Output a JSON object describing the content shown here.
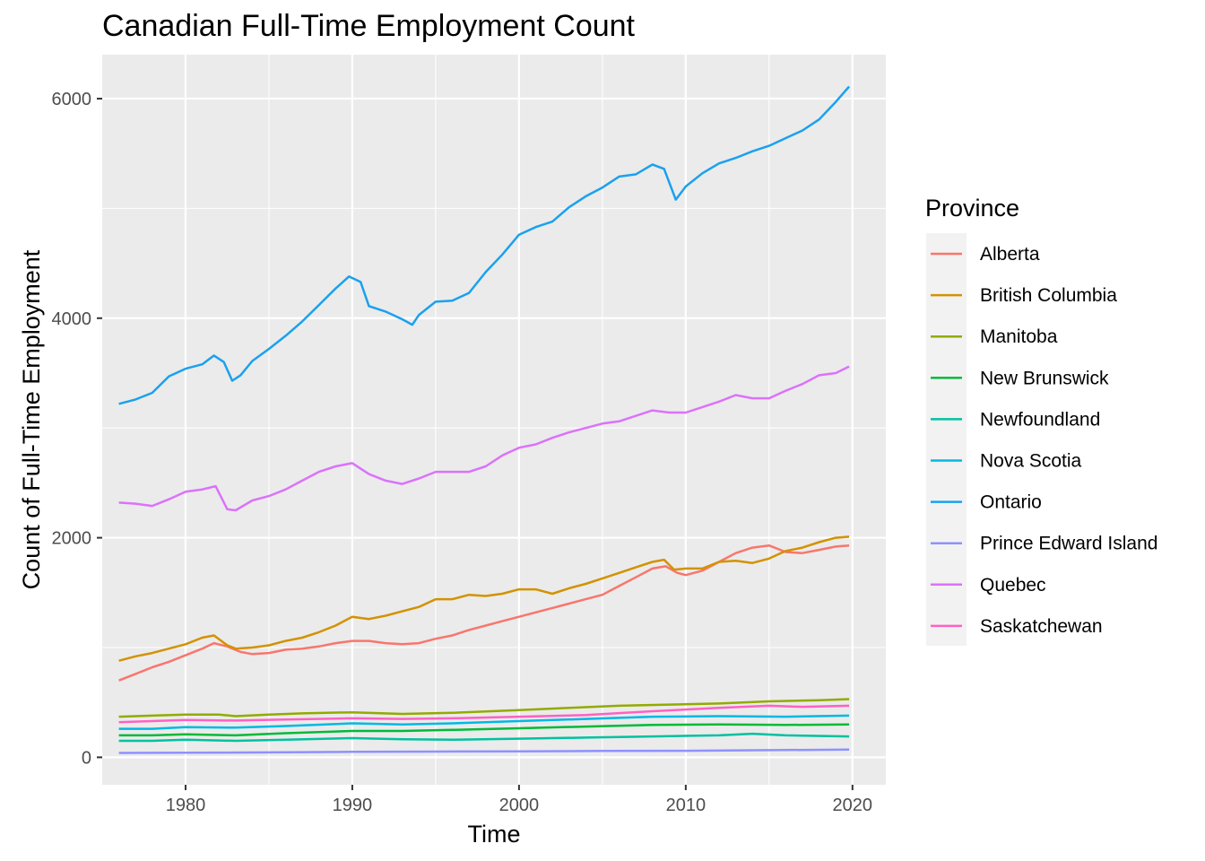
{
  "chart_data": {
    "type": "line",
    "title": "Canadian Full-Time Employment Count",
    "xlabel": "Time",
    "ylabel": "Count of Full-Time Employment",
    "xlim": [
      1975,
      2022
    ],
    "ylim": [
      -250,
      6400
    ],
    "x_ticks": [
      1980,
      1990,
      2000,
      2010,
      2020
    ],
    "y_ticks": [
      0,
      2000,
      4000,
      6000
    ],
    "grid": true,
    "legend_title": "Province",
    "legend_position": "right",
    "series": [
      {
        "name": "Alberta",
        "color": "#F8766D",
        "points": [
          [
            1976,
            700
          ],
          [
            1977,
            760
          ],
          [
            1978,
            820
          ],
          [
            1979,
            870
          ],
          [
            1980,
            930
          ],
          [
            1981,
            990
          ],
          [
            1981.7,
            1040
          ],
          [
            1982.5,
            1010
          ],
          [
            1983.3,
            960
          ],
          [
            1984,
            940
          ],
          [
            1985,
            950
          ],
          [
            1986,
            980
          ],
          [
            1987,
            990
          ],
          [
            1988,
            1010
          ],
          [
            1989,
            1040
          ],
          [
            1990,
            1060
          ],
          [
            1991,
            1060
          ],
          [
            1992,
            1040
          ],
          [
            1993,
            1030
          ],
          [
            1994,
            1040
          ],
          [
            1995,
            1080
          ],
          [
            1996,
            1110
          ],
          [
            1997,
            1160
          ],
          [
            1998,
            1200
          ],
          [
            1999,
            1240
          ],
          [
            2000,
            1280
          ],
          [
            2001,
            1320
          ],
          [
            2002,
            1360
          ],
          [
            2003,
            1400
          ],
          [
            2004,
            1440
          ],
          [
            2005,
            1480
          ],
          [
            2006,
            1560
          ],
          [
            2007,
            1640
          ],
          [
            2008,
            1720
          ],
          [
            2008.8,
            1740
          ],
          [
            2009.5,
            1680
          ],
          [
            2010,
            1660
          ],
          [
            2011,
            1700
          ],
          [
            2012,
            1780
          ],
          [
            2013,
            1860
          ],
          [
            2014,
            1910
          ],
          [
            2015,
            1930
          ],
          [
            2016,
            1870
          ],
          [
            2017,
            1860
          ],
          [
            2018,
            1890
          ],
          [
            2019,
            1920
          ],
          [
            2019.8,
            1930
          ]
        ]
      },
      {
        "name": "British Columbia",
        "color": "#D39200",
        "points": [
          [
            1976,
            880
          ],
          [
            1977,
            920
          ],
          [
            1978,
            950
          ],
          [
            1979,
            990
          ],
          [
            1980,
            1030
          ],
          [
            1981,
            1090
          ],
          [
            1981.7,
            1110
          ],
          [
            1982.5,
            1020
          ],
          [
            1983,
            990
          ],
          [
            1984,
            1000
          ],
          [
            1985,
            1020
          ],
          [
            1986,
            1060
          ],
          [
            1987,
            1090
          ],
          [
            1988,
            1140
          ],
          [
            1989,
            1200
          ],
          [
            1990,
            1280
          ],
          [
            1991,
            1260
          ],
          [
            1992,
            1290
          ],
          [
            1993,
            1330
          ],
          [
            1994,
            1370
          ],
          [
            1995,
            1440
          ],
          [
            1996,
            1440
          ],
          [
            1997,
            1480
          ],
          [
            1998,
            1470
          ],
          [
            1999,
            1490
          ],
          [
            2000,
            1530
          ],
          [
            2001,
            1530
          ],
          [
            2002,
            1490
          ],
          [
            2003,
            1540
          ],
          [
            2004,
            1580
          ],
          [
            2005,
            1630
          ],
          [
            2006,
            1680
          ],
          [
            2007,
            1730
          ],
          [
            2008,
            1780
          ],
          [
            2008.7,
            1800
          ],
          [
            2009.3,
            1710
          ],
          [
            2010,
            1720
          ],
          [
            2011,
            1720
          ],
          [
            2012,
            1780
          ],
          [
            2013,
            1790
          ],
          [
            2014,
            1770
          ],
          [
            2015,
            1810
          ],
          [
            2016,
            1880
          ],
          [
            2017,
            1910
          ],
          [
            2018,
            1960
          ],
          [
            2019,
            2000
          ],
          [
            2019.8,
            2010
          ]
        ]
      },
      {
        "name": "Manitoba",
        "color": "#93AA00",
        "points": [
          [
            1976,
            370
          ],
          [
            1978,
            380
          ],
          [
            1980,
            390
          ],
          [
            1982,
            390
          ],
          [
            1983,
            375
          ],
          [
            1985,
            390
          ],
          [
            1987,
            400
          ],
          [
            1990,
            410
          ],
          [
            1993,
            395
          ],
          [
            1996,
            405
          ],
          [
            2000,
            430
          ],
          [
            2003,
            450
          ],
          [
            2006,
            470
          ],
          [
            2009,
            480
          ],
          [
            2012,
            490
          ],
          [
            2015,
            510
          ],
          [
            2018,
            520
          ],
          [
            2019.8,
            530
          ]
        ]
      },
      {
        "name": "New Brunswick",
        "color": "#00BA38",
        "points": [
          [
            1976,
            200
          ],
          [
            1978,
            200
          ],
          [
            1980,
            210
          ],
          [
            1983,
            200
          ],
          [
            1986,
            220
          ],
          [
            1990,
            240
          ],
          [
            1993,
            240
          ],
          [
            1996,
            250
          ],
          [
            2000,
            265
          ],
          [
            2004,
            280
          ],
          [
            2008,
            295
          ],
          [
            2012,
            300
          ],
          [
            2016,
            295
          ],
          [
            2019.8,
            300
          ]
        ]
      },
      {
        "name": "Newfoundland",
        "color": "#00C19F",
        "points": [
          [
            1976,
            150
          ],
          [
            1978,
            150
          ],
          [
            1980,
            160
          ],
          [
            1983,
            150
          ],
          [
            1986,
            160
          ],
          [
            1990,
            175
          ],
          [
            1993,
            165
          ],
          [
            1996,
            160
          ],
          [
            2000,
            170
          ],
          [
            2004,
            180
          ],
          [
            2008,
            190
          ],
          [
            2012,
            200
          ],
          [
            2014,
            215
          ],
          [
            2016,
            200
          ],
          [
            2019.8,
            190
          ]
        ]
      },
      {
        "name": "Nova Scotia",
        "color": "#00B9E3",
        "points": [
          [
            1976,
            260
          ],
          [
            1978,
            260
          ],
          [
            1980,
            275
          ],
          [
            1983,
            270
          ],
          [
            1986,
            285
          ],
          [
            1990,
            310
          ],
          [
            1993,
            300
          ],
          [
            1996,
            310
          ],
          [
            2000,
            330
          ],
          [
            2004,
            350
          ],
          [
            2008,
            370
          ],
          [
            2012,
            375
          ],
          [
            2016,
            370
          ],
          [
            2019.8,
            380
          ]
        ]
      },
      {
        "name": "Ontario",
        "color": "#1AA1EE",
        "points": [
          [
            1976,
            3220
          ],
          [
            1977,
            3260
          ],
          [
            1978,
            3320
          ],
          [
            1979,
            3470
          ],
          [
            1980,
            3540
          ],
          [
            1981,
            3580
          ],
          [
            1981.7,
            3660
          ],
          [
            1982.3,
            3600
          ],
          [
            1982.8,
            3430
          ],
          [
            1983.3,
            3480
          ],
          [
            1984,
            3610
          ],
          [
            1985,
            3720
          ],
          [
            1986,
            3840
          ],
          [
            1987,
            3970
          ],
          [
            1988,
            4120
          ],
          [
            1989,
            4270
          ],
          [
            1989.8,
            4380
          ],
          [
            1990.5,
            4330
          ],
          [
            1991,
            4110
          ],
          [
            1992,
            4060
          ],
          [
            1993,
            3990
          ],
          [
            1993.6,
            3940
          ],
          [
            1994,
            4030
          ],
          [
            1995,
            4150
          ],
          [
            1996,
            4160
          ],
          [
            1997,
            4230
          ],
          [
            1998,
            4420
          ],
          [
            1999,
            4580
          ],
          [
            2000,
            4760
          ],
          [
            2001,
            4830
          ],
          [
            2002,
            4880
          ],
          [
            2003,
            5010
          ],
          [
            2004,
            5110
          ],
          [
            2005,
            5190
          ],
          [
            2006,
            5290
          ],
          [
            2007,
            5310
          ],
          [
            2008,
            5400
          ],
          [
            2008.7,
            5360
          ],
          [
            2009.4,
            5080
          ],
          [
            2010,
            5200
          ],
          [
            2011,
            5320
          ],
          [
            2012,
            5410
          ],
          [
            2013,
            5460
          ],
          [
            2014,
            5520
          ],
          [
            2015,
            5570
          ],
          [
            2016,
            5640
          ],
          [
            2017,
            5710
          ],
          [
            2018,
            5810
          ],
          [
            2019,
            5970
          ],
          [
            2019.8,
            6110
          ]
        ]
      },
      {
        "name": "Prince Edward Island",
        "color": "#8F91FF",
        "points": [
          [
            1976,
            40
          ],
          [
            1980,
            42
          ],
          [
            1985,
            45
          ],
          [
            1990,
            50
          ],
          [
            1995,
            52
          ],
          [
            2000,
            55
          ],
          [
            2005,
            58
          ],
          [
            2010,
            60
          ],
          [
            2015,
            65
          ],
          [
            2019.8,
            70
          ]
        ]
      },
      {
        "name": "Quebec",
        "color": "#DB72FB",
        "points": [
          [
            1976,
            2320
          ],
          [
            1977,
            2310
          ],
          [
            1978,
            2290
          ],
          [
            1979,
            2350
          ],
          [
            1980,
            2420
          ],
          [
            1981,
            2440
          ],
          [
            1981.8,
            2470
          ],
          [
            1982.5,
            2260
          ],
          [
            1983,
            2250
          ],
          [
            1984,
            2340
          ],
          [
            1985,
            2380
          ],
          [
            1986,
            2440
          ],
          [
            1987,
            2520
          ],
          [
            1988,
            2600
          ],
          [
            1989,
            2650
          ],
          [
            1990,
            2680
          ],
          [
            1991,
            2580
          ],
          [
            1992,
            2520
          ],
          [
            1993,
            2490
          ],
          [
            1994,
            2540
          ],
          [
            1995,
            2600
          ],
          [
            1996,
            2600
          ],
          [
            1997,
            2600
          ],
          [
            1998,
            2650
          ],
          [
            1999,
            2750
          ],
          [
            2000,
            2820
          ],
          [
            2001,
            2850
          ],
          [
            2002,
            2910
          ],
          [
            2003,
            2960
          ],
          [
            2004,
            3000
          ],
          [
            2005,
            3040
          ],
          [
            2006,
            3060
          ],
          [
            2007,
            3110
          ],
          [
            2008,
            3160
          ],
          [
            2009,
            3140
          ],
          [
            2010,
            3140
          ],
          [
            2011,
            3190
          ],
          [
            2012,
            3240
          ],
          [
            2013,
            3300
          ],
          [
            2014,
            3270
          ],
          [
            2015,
            3270
          ],
          [
            2016,
            3340
          ],
          [
            2017,
            3400
          ],
          [
            2018,
            3480
          ],
          [
            2019,
            3500
          ],
          [
            2019.8,
            3560
          ]
        ]
      },
      {
        "name": "Saskatchewan",
        "color": "#FF61C3",
        "points": [
          [
            1976,
            320
          ],
          [
            1978,
            330
          ],
          [
            1980,
            340
          ],
          [
            1983,
            335
          ],
          [
            1986,
            345
          ],
          [
            1990,
            355
          ],
          [
            1993,
            350
          ],
          [
            1996,
            355
          ],
          [
            2000,
            370
          ],
          [
            2004,
            385
          ],
          [
            2008,
            420
          ],
          [
            2012,
            450
          ],
          [
            2015,
            470
          ],
          [
            2017,
            460
          ],
          [
            2019.8,
            470
          ]
        ]
      }
    ]
  }
}
